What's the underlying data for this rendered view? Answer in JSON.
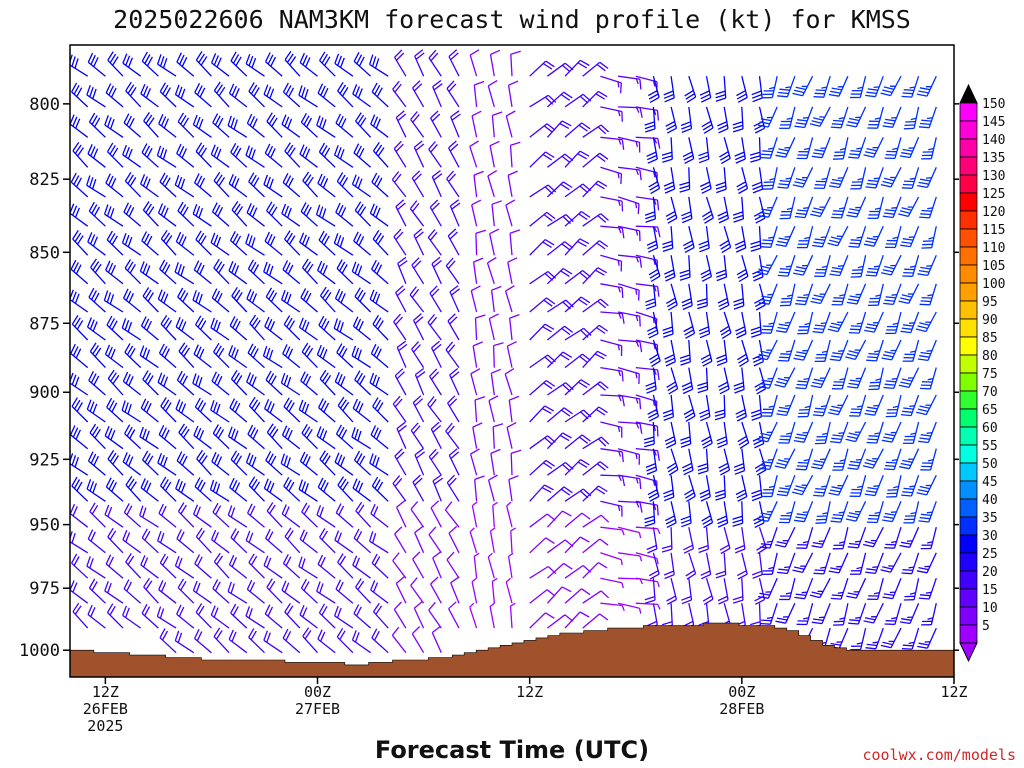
{
  "chart_data": {
    "type": "wind-barb-profile",
    "title": "2025022606 NAM3KM forecast wind profile (kt) for KMSS",
    "xlabel": "Forecast Time (UTC)",
    "ylabel": "",
    "credit": "coolwx.com/models",
    "units": "kt",
    "y_axis": {
      "ticks": [
        "800",
        "825",
        "850",
        "875",
        "900",
        "925",
        "950",
        "975",
        "1000"
      ],
      "values": [
        800,
        825,
        850,
        875,
        900,
        925,
        950,
        975,
        1000
      ],
      "range": [
        781,
        1011
      ],
      "top_level_hPa": 791,
      "level_step_hPa": 10,
      "note_pressure_increases_downward": true
    },
    "x_axis": {
      "range_hours": [
        -14,
        36
      ],
      "ticks": [
        {
          "hour": -12,
          "lines": [
            "12Z",
            "26FEB",
            "2025"
          ]
        },
        {
          "hour": 0,
          "lines": [
            "00Z",
            "27FEB"
          ]
        },
        {
          "hour": 12,
          "lines": [
            "12Z"
          ]
        },
        {
          "hour": 24,
          "lines": [
            "00Z",
            "28FEB"
          ]
        },
        {
          "hour": 36,
          "lines": [
            "12Z"
          ]
        }
      ],
      "column_step_hours": 1,
      "first_column_hour": -13,
      "column_count": 49
    },
    "terrain": {
      "color": "#a0522d",
      "pressure_hPa": [
        1000,
        1000,
        1001,
        1001,
        1001,
        1002,
        1002,
        1002,
        1003,
        1003,
        1003,
        1004,
        1004,
        1004,
        1004,
        1004,
        1004,
        1004,
        1005,
        1005,
        1005,
        1005,
        1005,
        1006,
        1006,
        1005,
        1005,
        1004,
        1004,
        1004,
        1003,
        1003,
        1002,
        1001,
        1000,
        999,
        998,
        997,
        996,
        995,
        994,
        993,
        993,
        992,
        992,
        991,
        991,
        991,
        990,
        990,
        990,
        990,
        990,
        989,
        989,
        989,
        990,
        990,
        990,
        991,
        992,
        994,
        996,
        998,
        999,
        1000,
        1000,
        1000,
        1000,
        1000,
        1000,
        1000,
        1000,
        1000
      ]
    },
    "wind_regimes": [
      {
        "hours": [
          -14,
          5
        ],
        "direction_deg": 310,
        "speed_kt": 30
      },
      {
        "hours": [
          5,
          9
        ],
        "direction_deg": 330,
        "speed_kt": 20
      },
      {
        "hours": [
          9,
          12
        ],
        "direction_deg": 350,
        "speed_kt": 10
      },
      {
        "hours": [
          12,
          16
        ],
        "direction_deg": 50,
        "speed_kt": 20
      },
      {
        "hours": [
          16,
          19
        ],
        "direction_deg": 100,
        "speed_kt": 15
      },
      {
        "hours": [
          19,
          26
        ],
        "direction_deg": 170,
        "speed_kt": 30
      },
      {
        "hours": [
          26,
          36
        ],
        "direction_deg": 200,
        "speed_kt": 35
      }
    ],
    "colorbar": {
      "labels": [
        "150",
        "145",
        "140",
        "135",
        "130",
        "125",
        "120",
        "115",
        "110",
        "105",
        "100",
        "95",
        "90",
        "85",
        "80",
        "75",
        "70",
        "65",
        "60",
        "55",
        "50",
        "45",
        "40",
        "35",
        "30",
        "25",
        "20",
        "15",
        "10",
        "5"
      ],
      "colors": [
        "#ff00ff",
        "#ff00d8",
        "#ff00a8",
        "#ff0078",
        "#ff0048",
        "#ff0000",
        "#ff3000",
        "#ff5000",
        "#ff7000",
        "#ff8c00",
        "#ffa000",
        "#ffc000",
        "#ffe000",
        "#ffff00",
        "#c0ff00",
        "#80ff00",
        "#30ff30",
        "#00ff70",
        "#00ffb0",
        "#00ffe0",
        "#00c8ff",
        "#0090ff",
        "#0060ff",
        "#0030ff",
        "#0000ff",
        "#2000ff",
        "#4000ff",
        "#6000ff",
        "#8000ff",
        "#a000ff"
      ],
      "top_arrow_color": "#000000",
      "bottom_arrow_color": "#a000ff"
    }
  }
}
